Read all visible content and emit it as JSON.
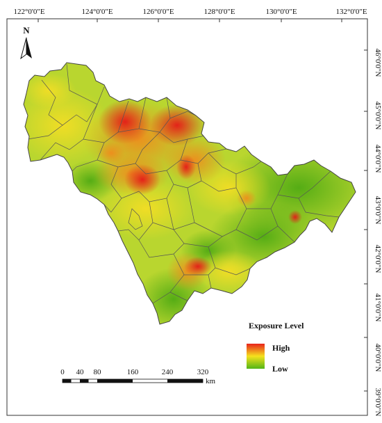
{
  "map": {
    "north_label": "N",
    "longitude_labels": [
      "122°0'0\"E",
      "124°0'0\"E",
      "126°0'0\"E",
      "128°0'0\"E",
      "130°0'0\"E",
      "132°0'0\"E"
    ],
    "latitude_labels": [
      "46°0'0\"N",
      "45°0'0\"N",
      "44°0'0\"N",
      "43°0'0\"N",
      "42°0'0\"N",
      "41°0'0\"N",
      "40°0'0\"N",
      "39°0'0\"N"
    ],
    "legend": {
      "title": "Exposure Level",
      "high_label": "High",
      "low_label": "Low",
      "colors": {
        "high": "#e8231c",
        "mid": "#f5e21d",
        "low": "#52b517"
      }
    },
    "scale_bar": {
      "ticks": [
        "0",
        "40",
        "80",
        "160",
        "240",
        "320"
      ],
      "unit": "km"
    }
  }
}
